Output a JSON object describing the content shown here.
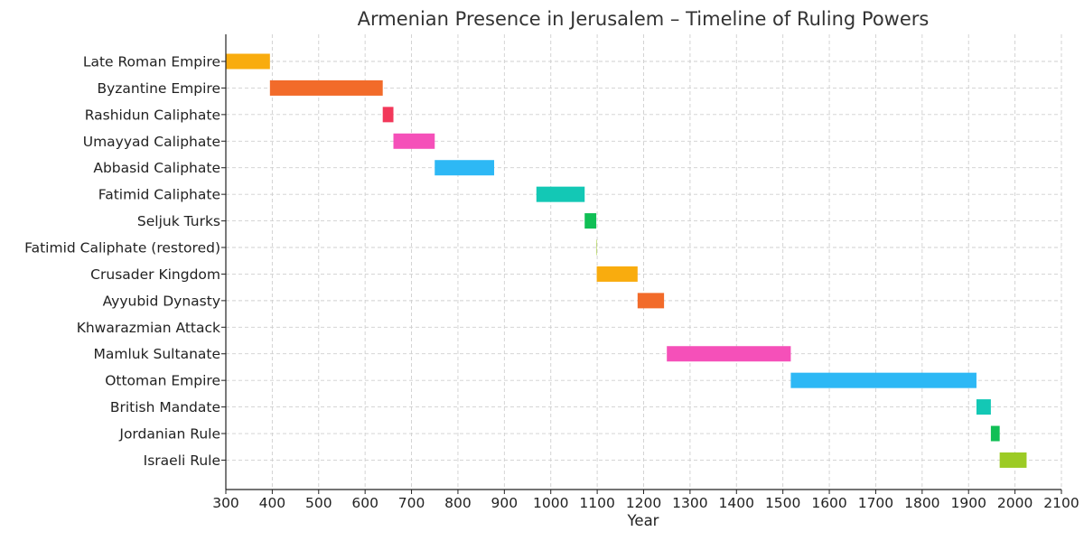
{
  "chart_data": {
    "type": "bar",
    "orientation": "horizontal-range",
    "title": "Armenian Presence in Jerusalem – Timeline of Ruling Powers",
    "xlabel": "Year",
    "ylabel": "",
    "xlim": [
      300,
      2100
    ],
    "xticks": [
      300,
      400,
      500,
      600,
      700,
      800,
      900,
      1000,
      1100,
      1200,
      1300,
      1400,
      1500,
      1600,
      1700,
      1800,
      1900,
      2000,
      2100
    ],
    "grid": true,
    "grid_style": "dashed",
    "legend": "none",
    "categories": [
      "Late Roman Empire",
      "Byzantine Empire",
      "Rashidun Caliphate",
      "Umayyad Caliphate",
      "Abbasid Caliphate",
      "Fatimid Caliphate",
      "Seljuk Turks",
      "Fatimid Caliphate (restored)",
      "Crusader Kingdom",
      "Ayyubid Dynasty",
      "Khwarazmian Attack",
      "Mamluk Sultanate",
      "Ottoman Empire",
      "British Mandate",
      "Jordanian Rule",
      "Israeli Rule"
    ],
    "bars": [
      {
        "start": 300,
        "end": 395,
        "color": "#f9ac0e"
      },
      {
        "start": 395,
        "end": 638,
        "color": "#f26b2a"
      },
      {
        "start": 638,
        "end": 661,
        "color": "#f2385a"
      },
      {
        "start": 661,
        "end": 750,
        "color": "#f550b9"
      },
      {
        "start": 750,
        "end": 878,
        "color": "#2db8f5"
      },
      {
        "start": 969,
        "end": 1073,
        "color": "#13c8b5"
      },
      {
        "start": 1073,
        "end": 1098,
        "color": "#10bf55"
      },
      {
        "start": 1098,
        "end": 1099,
        "color": "#9ccb25"
      },
      {
        "start": 1099,
        "end": 1187,
        "color": "#f9ac0e"
      },
      {
        "start": 1187,
        "end": 1244,
        "color": "#f26b2a"
      },
      {
        "start": 1244,
        "end": 1244,
        "color": "#f2385a"
      },
      {
        "start": 1250,
        "end": 1517,
        "color": "#f550b9"
      },
      {
        "start": 1517,
        "end": 1917,
        "color": "#2db8f5"
      },
      {
        "start": 1917,
        "end": 1948,
        "color": "#13c8b5"
      },
      {
        "start": 1948,
        "end": 1967,
        "color": "#10bf55"
      },
      {
        "start": 1967,
        "end": 2025,
        "color": "#9ccb25"
      }
    ]
  }
}
